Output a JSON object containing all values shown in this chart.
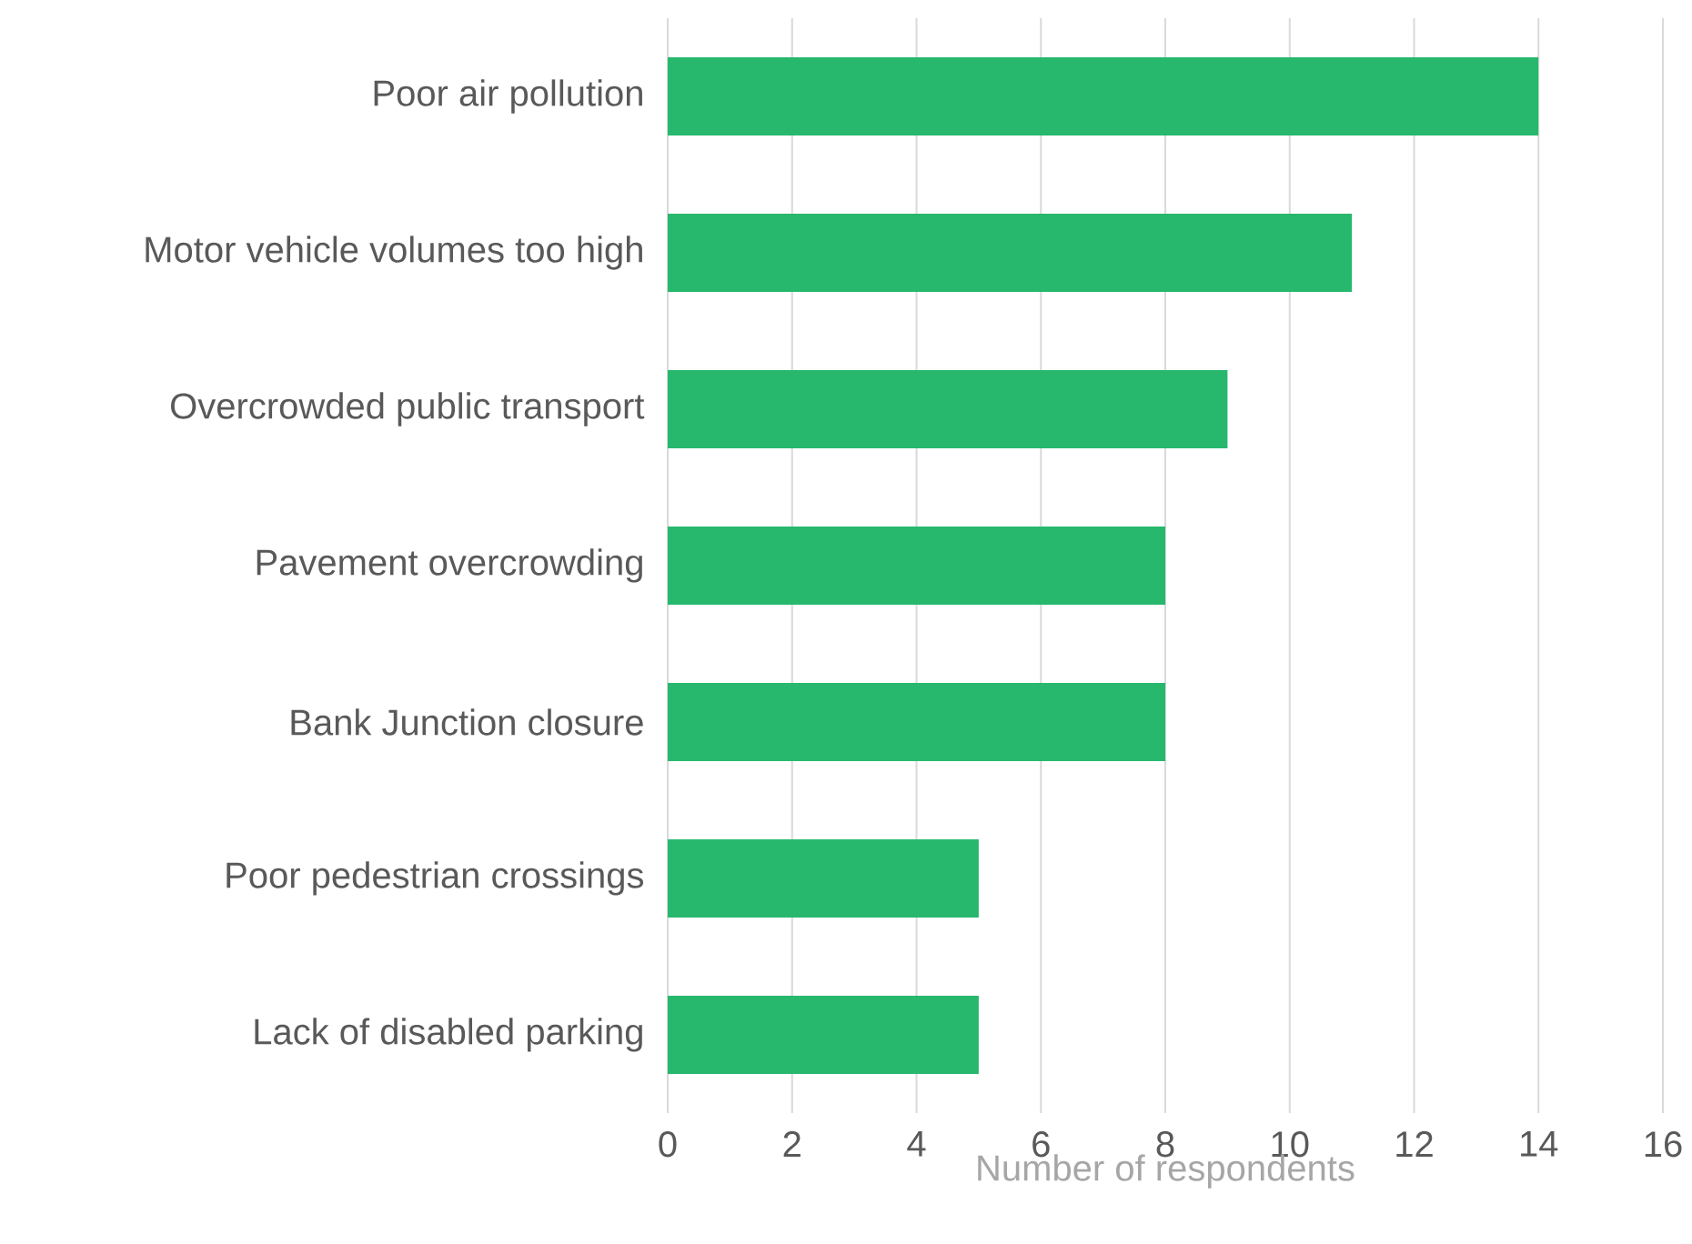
{
  "chart_data": {
    "type": "bar",
    "orientation": "horizontal",
    "xlabel": "Number of respondents",
    "categories": [
      "Poor air pollution",
      "Motor vehicle volumes too high",
      "Overcrowded public transport",
      "Pavement overcrowding",
      "Bank Junction closure",
      "Poor pedestrian crossings",
      "Lack of disabled parking"
    ],
    "values": [
      14,
      11,
      9,
      8,
      8,
      5,
      5
    ],
    "color": "#27b86e",
    "xlim": [
      0,
      16
    ],
    "xticks": [
      0,
      2,
      4,
      6,
      8,
      10,
      12,
      14,
      16
    ],
    "grid": "x"
  }
}
